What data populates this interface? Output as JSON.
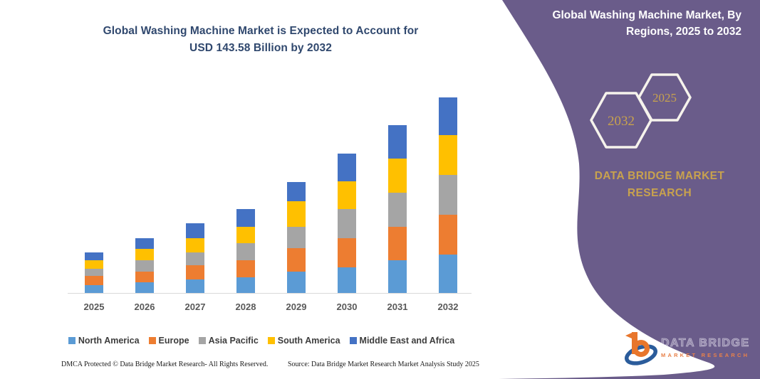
{
  "chart_title": {
    "line1": "Global Washing Machine Market is Expected to Account for",
    "line2": "USD 143.58 Billion by 2032"
  },
  "header": {
    "title_line1": "Global Washing Machine Market, By",
    "title_line2": "Regions, 2025 to 2032",
    "panel_color": "#6A5C8A",
    "accent_gold": "#C8A24E",
    "hexagons": {
      "back": {
        "label": "2032"
      },
      "front": {
        "label": "2025"
      }
    },
    "brand_line1": "DATA BRIDGE MARKET",
    "brand_line2": "RESEARCH"
  },
  "chart_data": {
    "type": "bar",
    "stacked": true,
    "title": "Global Washing Machine Market is Expected to Account for USD 143.58 Billion by 2032",
    "unit": "USD Billion (estimated from bar heights; 2032 total = 143.58)",
    "categories": [
      "2025",
      "2026",
      "2027",
      "2028",
      "2029",
      "2030",
      "2031",
      "2032"
    ],
    "series": [
      {
        "name": "North America",
        "color": "#5B9BD5",
        "values": [
          6.1,
          8.3,
          10.0,
          12.1,
          16.1,
          19.4,
          24.6,
          28.6
        ]
      },
      {
        "name": "Europe",
        "color": "#ED7D31",
        "values": [
          6.9,
          8.1,
          10.7,
          12.6,
          17.3,
          21.3,
          24.4,
          29.1
        ]
      },
      {
        "name": "Asia Pacific",
        "color": "#A5A5A5",
        "values": [
          5.2,
          8.1,
          9.5,
          12.5,
          15.6,
          21.1,
          25.1,
          29.0
        ]
      },
      {
        "name": "South America",
        "color": "#FFC000",
        "values": [
          6.6,
          8.3,
          10.4,
          11.8,
          18.5,
          20.4,
          24.6,
          29.1
        ]
      },
      {
        "name": "Middle East and Africa",
        "color": "#4472C4",
        "values": [
          5.6,
          7.8,
          10.7,
          13.0,
          14.2,
          20.3,
          24.6,
          27.8
        ]
      }
    ],
    "totals": [
      30.4,
      40.6,
      51.3,
      62.0,
      81.7,
      102.5,
      123.3,
      143.6
    ],
    "ylim": [
      0,
      150
    ],
    "grid": false,
    "y_axis_shown": false,
    "legend_position": "bottom"
  },
  "footer": {
    "dmca": "DMCA Protected © Data Bridge Market Research-  All Rights Reserved.",
    "source": "Source: Data Bridge Market Research  Market Analysis Study 2025"
  },
  "logo": {
    "name": "DATA BRIDGE",
    "subtitle": "MARKET RESEARCH"
  }
}
